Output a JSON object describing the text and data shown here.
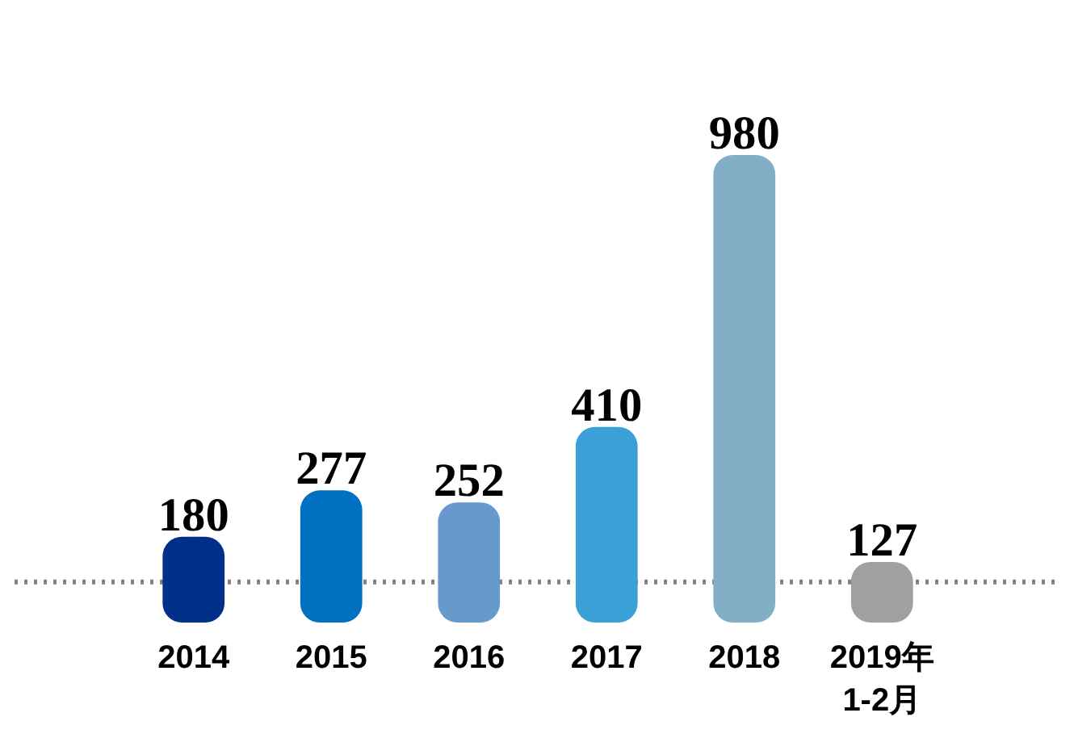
{
  "chart_data": {
    "type": "bar",
    "categories": [
      "2014",
      "2015",
      "2016",
      "2017",
      "2018",
      "2019年\n1-2月"
    ],
    "values": [
      180,
      277,
      252,
      410,
      980,
      127
    ],
    "colors": [
      "#003087",
      "#0070c0",
      "#6699cc",
      "#3aa0d5",
      "#82aec6",
      "#a0a0a0"
    ],
    "data_labels": true,
    "grid": false,
    "tick_labels": "x",
    "ref_lines": [
      {
        "axis": "y",
        "value": 85,
        "color": "#808080",
        "line_style": "dotted"
      }
    ]
  }
}
